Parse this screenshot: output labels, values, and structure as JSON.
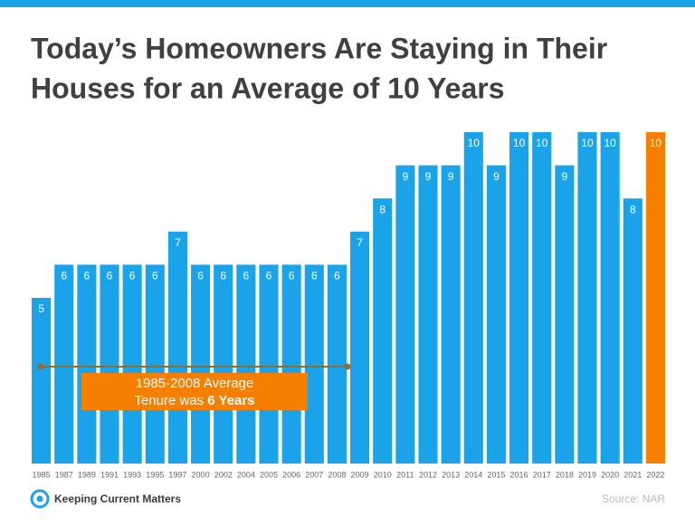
{
  "chart_data": {
    "type": "bar",
    "title": [
      "Today’s Homeowners Are Staying in Their",
      "Houses for an Average of 10 Years"
    ],
    "categories": [
      "1985",
      "1987",
      "1989",
      "1991",
      "1993",
      "1995",
      "1997",
      "2000",
      "2002",
      "2004",
      "2005",
      "2006",
      "2007",
      "2008",
      "2009",
      "2010",
      "2011",
      "2012",
      "2013",
      "2014",
      "2015",
      "2016",
      "2017",
      "2018",
      "2019",
      "2020",
      "2021",
      "2022"
    ],
    "values": [
      5,
      6,
      6,
      6,
      6,
      6,
      7,
      6,
      6,
      6,
      6,
      6,
      6,
      6,
      7,
      8,
      9,
      9,
      9,
      10,
      9,
      10,
      10,
      9,
      10,
      10,
      8,
      10
    ],
    "colors": [
      "#1aa3e8",
      "#1aa3e8",
      "#1aa3e8",
      "#1aa3e8",
      "#1aa3e8",
      "#1aa3e8",
      "#1aa3e8",
      "#1aa3e8",
      "#1aa3e8",
      "#1aa3e8",
      "#1aa3e8",
      "#1aa3e8",
      "#1aa3e8",
      "#1aa3e8",
      "#1aa3e8",
      "#1aa3e8",
      "#1aa3e8",
      "#1aa3e8",
      "#1aa3e8",
      "#1aa3e8",
      "#1aa3e8",
      "#1aa3e8",
      "#1aa3e8",
      "#1aa3e8",
      "#1aa3e8",
      "#1aa3e8",
      "#1aa3e8",
      "#f77f00"
    ],
    "ylim": [
      0,
      10
    ],
    "annotation": {
      "line1": "1985-2008 Average",
      "line2": "Tenure was",
      "highlight": "6 Years"
    },
    "logo": "Keeping Current Matters",
    "source": "Source: NAR"
  }
}
